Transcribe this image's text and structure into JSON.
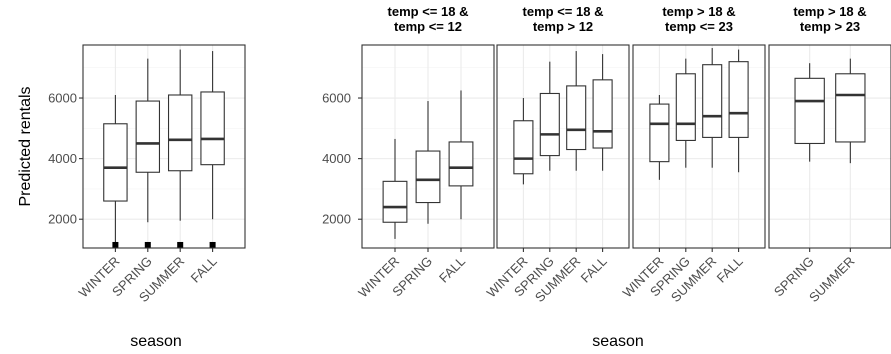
{
  "chart_data": [
    {
      "type": "boxplot",
      "xlabel": "season",
      "ylabel": "Predicted rentals",
      "ylim": [
        1050,
        7750
      ],
      "yticks": [
        2000,
        4000,
        6000
      ],
      "grid": true,
      "panels": [
        {
          "strip": [],
          "categories": [
            "WINTER",
            "SPRING",
            "SUMMER",
            "FALL"
          ],
          "boxes": [
            {
              "min": 1200,
              "q1": 2600,
              "median": 3700,
              "q3": 5150,
              "max": 6100,
              "outliers": [
                1150
              ]
            },
            {
              "min": 1900,
              "q1": 3550,
              "median": 4500,
              "q3": 5900,
              "max": 7300,
              "outliers": [
                1150
              ]
            },
            {
              "min": 1950,
              "q1": 3600,
              "median": 4620,
              "q3": 6100,
              "max": 7600,
              "outliers": [
                1150
              ]
            },
            {
              "min": 2000,
              "q1": 3800,
              "median": 4650,
              "q3": 6200,
              "max": 7550,
              "outliers": [
                1150
              ]
            }
          ]
        }
      ]
    },
    {
      "type": "boxplot",
      "xlabel": "season",
      "ylabel": "",
      "ylim": [
        1050,
        7750
      ],
      "yticks": [
        2000,
        4000,
        6000
      ],
      "grid": true,
      "panels": [
        {
          "strip": [
            "temp <= 18 &",
            "temp <= 12"
          ],
          "categories": [
            "WINTER",
            "SPRING",
            "FALL"
          ],
          "boxes": [
            {
              "min": 1350,
              "q1": 1900,
              "median": 2400,
              "q3": 3250,
              "max": 4650,
              "outliers": []
            },
            {
              "min": 1850,
              "q1": 2550,
              "median": 3300,
              "q3": 4250,
              "max": 5900,
              "outliers": []
            },
            {
              "min": 2000,
              "q1": 3100,
              "median": 3700,
              "q3": 4550,
              "max": 6250,
              "outliers": []
            }
          ]
        },
        {
          "strip": [
            "temp <= 18 &",
            "temp > 12"
          ],
          "categories": [
            "WINTER",
            "SPRING",
            "SUMMER",
            "FALL"
          ],
          "boxes": [
            {
              "min": 3150,
              "q1": 3500,
              "median": 4000,
              "q3": 5250,
              "max": 6000,
              "outliers": []
            },
            {
              "min": 3600,
              "q1": 4100,
              "median": 4800,
              "q3": 6150,
              "max": 7200,
              "outliers": []
            },
            {
              "min": 3600,
              "q1": 4300,
              "median": 4950,
              "q3": 6400,
              "max": 7550,
              "outliers": []
            },
            {
              "min": 3600,
              "q1": 4350,
              "median": 4900,
              "q3": 6600,
              "max": 7450,
              "outliers": []
            }
          ]
        },
        {
          "strip": [
            "temp > 18 &",
            "temp <= 23"
          ],
          "categories": [
            "WINTER",
            "SPRING",
            "SUMMER",
            "FALL"
          ],
          "boxes": [
            {
              "min": 3300,
              "q1": 3900,
              "median": 5150,
              "q3": 5800,
              "max": 6100,
              "outliers": []
            },
            {
              "min": 3700,
              "q1": 4600,
              "median": 5150,
              "q3": 6800,
              "max": 7300,
              "outliers": []
            },
            {
              "min": 3700,
              "q1": 4700,
              "median": 5400,
              "q3": 7100,
              "max": 7650,
              "outliers": []
            },
            {
              "min": 3550,
              "q1": 4700,
              "median": 5500,
              "q3": 7200,
              "max": 7600,
              "outliers": []
            }
          ]
        },
        {
          "strip": [
            "temp > 18 &",
            "temp > 23"
          ],
          "categories": [
            "SPRING",
            "SUMMER"
          ],
          "boxes": [
            {
              "min": 3900,
              "q1": 4500,
              "median": 5900,
              "q3": 6650,
              "max": 7150,
              "outliers": []
            },
            {
              "min": 3850,
              "q1": 4550,
              "median": 6100,
              "q3": 6800,
              "max": 7300,
              "outliers": []
            }
          ]
        }
      ]
    }
  ]
}
